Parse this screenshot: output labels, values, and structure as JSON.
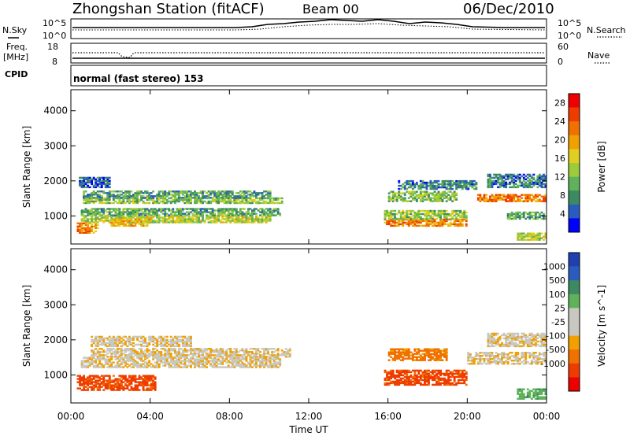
{
  "header": {
    "title": "Zhongshan Station (fitACF)",
    "beam": "Beam 00",
    "date": "06/Dec/2010"
  },
  "noise_panel": {
    "left_label": "N.Sky",
    "right_label": "N.Search",
    "left_ticks": [
      "10^5",
      "10^0"
    ],
    "right_ticks": [
      "10^5",
      "10^0"
    ]
  },
  "freq_panel": {
    "left_label_1": "Freq.",
    "left_label_2": "[MHz]",
    "right_label": "Nave",
    "left_ticks": [
      "18",
      "8"
    ],
    "right_ticks": [
      "60",
      "0"
    ]
  },
  "cpid_panel": {
    "label": "CPID",
    "value": "normal (fast stereo) 153"
  },
  "xaxis": {
    "label": "Time UT",
    "ticks": [
      "00:00",
      "04:00",
      "08:00",
      "12:00",
      "16:00",
      "20:00",
      "00:00"
    ]
  },
  "chart_data": [
    {
      "type": "heatmap",
      "name": "power",
      "ylabel": "Slant Range [km]",
      "y_ticks": [
        "1000",
        "2000",
        "3000",
        "4000"
      ],
      "ylim": [
        200,
        4600
      ],
      "xlim_hours": [
        0,
        24
      ],
      "colorbar": {
        "label": "Power [dB]",
        "ticks": [
          "4",
          "8",
          "12",
          "16",
          "20",
          "24",
          "28"
        ],
        "range": [
          0,
          30
        ],
        "colors": [
          "#0000ff",
          "#2a5cc0",
          "#3c8a62",
          "#5fb25a",
          "#9ccc3c",
          "#e0cf20",
          "#f0a000",
          "#f07000",
          "#ee3c00",
          "#ee0000"
        ]
      },
      "bands": [
        {
          "t0": 0.3,
          "t1": 1.4,
          "r0": 500,
          "r1": 800,
          "v": 22
        },
        {
          "t0": 0.5,
          "t1": 10.0,
          "r0": 800,
          "r1": 1000,
          "v": 14
        },
        {
          "t0": 0.5,
          "t1": 10.5,
          "r0": 1000,
          "r1": 1200,
          "v": 10
        },
        {
          "t0": 0.6,
          "t1": 10.6,
          "r0": 1350,
          "r1": 1500,
          "v": 12
        },
        {
          "t0": 0.6,
          "t1": 10.0,
          "r0": 1500,
          "r1": 1700,
          "v": 9
        },
        {
          "t0": 0.4,
          "t1": 2.0,
          "r0": 1800,
          "r1": 2100,
          "v": 5
        },
        {
          "t0": 2.0,
          "t1": 4.0,
          "r0": 700,
          "r1": 900,
          "v": 19
        },
        {
          "t0": 15.8,
          "t1": 20.0,
          "r0": 700,
          "r1": 900,
          "v": 21
        },
        {
          "t0": 15.8,
          "t1": 20.0,
          "r0": 900,
          "r1": 1150,
          "v": 13
        },
        {
          "t0": 16.0,
          "t1": 19.5,
          "r0": 1400,
          "r1": 1700,
          "v": 12
        },
        {
          "t0": 16.5,
          "t1": 20.5,
          "r0": 1750,
          "r1": 2000,
          "v": 7
        },
        {
          "t0": 20.5,
          "t1": 24.0,
          "r0": 1400,
          "r1": 1600,
          "v": 22
        },
        {
          "t0": 21.0,
          "t1": 24.0,
          "r0": 1800,
          "r1": 2200,
          "v": 7
        },
        {
          "t0": 22.0,
          "t1": 24.0,
          "r0": 900,
          "r1": 1100,
          "v": 10
        },
        {
          "t0": 22.5,
          "t1": 24.0,
          "r0": 300,
          "r1": 500,
          "v": 14
        }
      ]
    },
    {
      "type": "heatmap",
      "name": "velocity",
      "ylabel": "Slant Range [km]",
      "y_ticks": [
        "1000",
        "2000",
        "3000",
        "4000"
      ],
      "ylim": [
        200,
        4600
      ],
      "xlim_hours": [
        0,
        24
      ],
      "colorbar": {
        "label": "Velocity [m s^-1]",
        "ticks": [
          "1000",
          "500",
          "100",
          "25",
          "-25",
          "-100",
          "-500",
          "-1000"
        ],
        "colors": [
          "#2040b0",
          "#2a5cc0",
          "#3c8a62",
          "#5fb25a",
          "#c8c8c0",
          "#c8c8c0",
          "#f0a000",
          "#f07000",
          "#ee3c00",
          "#ee0000"
        ]
      },
      "bands": [
        {
          "t0": 0.3,
          "t1": 4.3,
          "r0": 550,
          "r1": 1000,
          "v": -300
        },
        {
          "t0": 0.5,
          "t1": 10.5,
          "r0": 1200,
          "r1": 1500,
          "v": 0
        },
        {
          "t0": 1.0,
          "t1": 11.0,
          "r0": 1500,
          "r1": 1750,
          "v": 0
        },
        {
          "t0": 1.0,
          "t1": 6.0,
          "r0": 1800,
          "r1": 2100,
          "v": 0
        },
        {
          "t0": 15.8,
          "t1": 20.0,
          "r0": 700,
          "r1": 1150,
          "v": -300
        },
        {
          "t0": 16.0,
          "t1": 19.0,
          "r0": 1400,
          "r1": 1750,
          "v": -150
        },
        {
          "t0": 20.0,
          "t1": 24.0,
          "r0": 1300,
          "r1": 1650,
          "v": 0
        },
        {
          "t0": 21.0,
          "t1": 24.0,
          "r0": 1800,
          "r1": 2200,
          "v": 0
        },
        {
          "t0": 22.5,
          "t1": 24.0,
          "r0": 300,
          "r1": 600,
          "v": 200
        }
      ]
    }
  ]
}
